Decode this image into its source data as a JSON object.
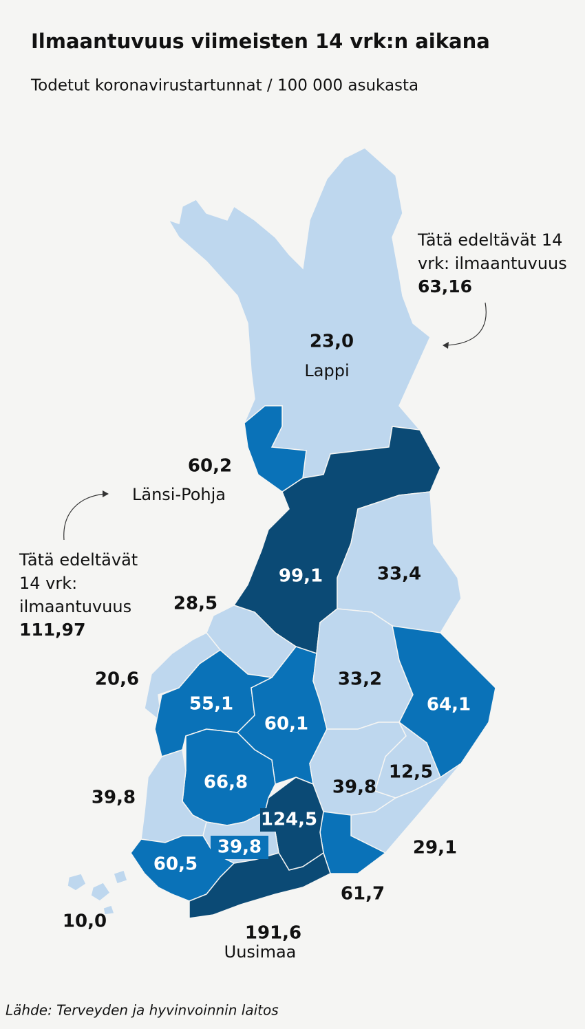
{
  "header": {
    "title": "Ilmaantuvuus viimeisten 14 vrk:n aikana",
    "subtitle": "Todetut koronavirustartunnat / 100 000 asukasta"
  },
  "regions": [
    {
      "value": "23,0",
      "name": "Lappi",
      "color": "#bed7ee"
    },
    {
      "value": "60,2",
      "name": "Länsi-Pohja",
      "color": "#0a72b8"
    },
    {
      "value": "99,1",
      "color": "#0b4a75"
    },
    {
      "value": "33,4",
      "color": "#bed7ee"
    },
    {
      "value": "28,5",
      "color": "#bed7ee"
    },
    {
      "value": "20,6",
      "color": "#bed7ee"
    },
    {
      "value": "55,1",
      "color": "#0a72b8"
    },
    {
      "value": "60,1",
      "color": "#0a72b8"
    },
    {
      "value": "33,2",
      "color": "#bed7ee"
    },
    {
      "value": "64,1",
      "color": "#0a72b8"
    },
    {
      "value": "39,8",
      "color": "#bed7ee"
    },
    {
      "value": "12,5",
      "color": "#bed7ee"
    },
    {
      "value": "29,1",
      "color": "#bed7ee"
    },
    {
      "value": "61,7",
      "color": "#0a72b8"
    },
    {
      "value": "124,5",
      "color": "#0b4a75"
    },
    {
      "value": "66,8",
      "color": "#0a72b8"
    },
    {
      "value": "39,8",
      "color": "#bed7ee"
    },
    {
      "value": "39,8",
      "color": "#bed7ee"
    },
    {
      "value": "60,5",
      "color": "#0a72b8"
    },
    {
      "value": "191,6",
      "name": "Uusimaa",
      "color": "#0b4a75"
    },
    {
      "value": "10,0",
      "color": "#bed7ee"
    }
  ],
  "annotations": [
    {
      "lines": [
        "Tätä edeltävät 14",
        "vrk: ilmaantuvuus"
      ],
      "value": "63,16"
    },
    {
      "lines": [
        "Tätä edeltävät",
        "14 vrk:",
        "ilmaantuvuus"
      ],
      "value": "111,97"
    }
  ],
  "source": "Lähde: Terveyden ja hyvinvoinnin laitos"
}
